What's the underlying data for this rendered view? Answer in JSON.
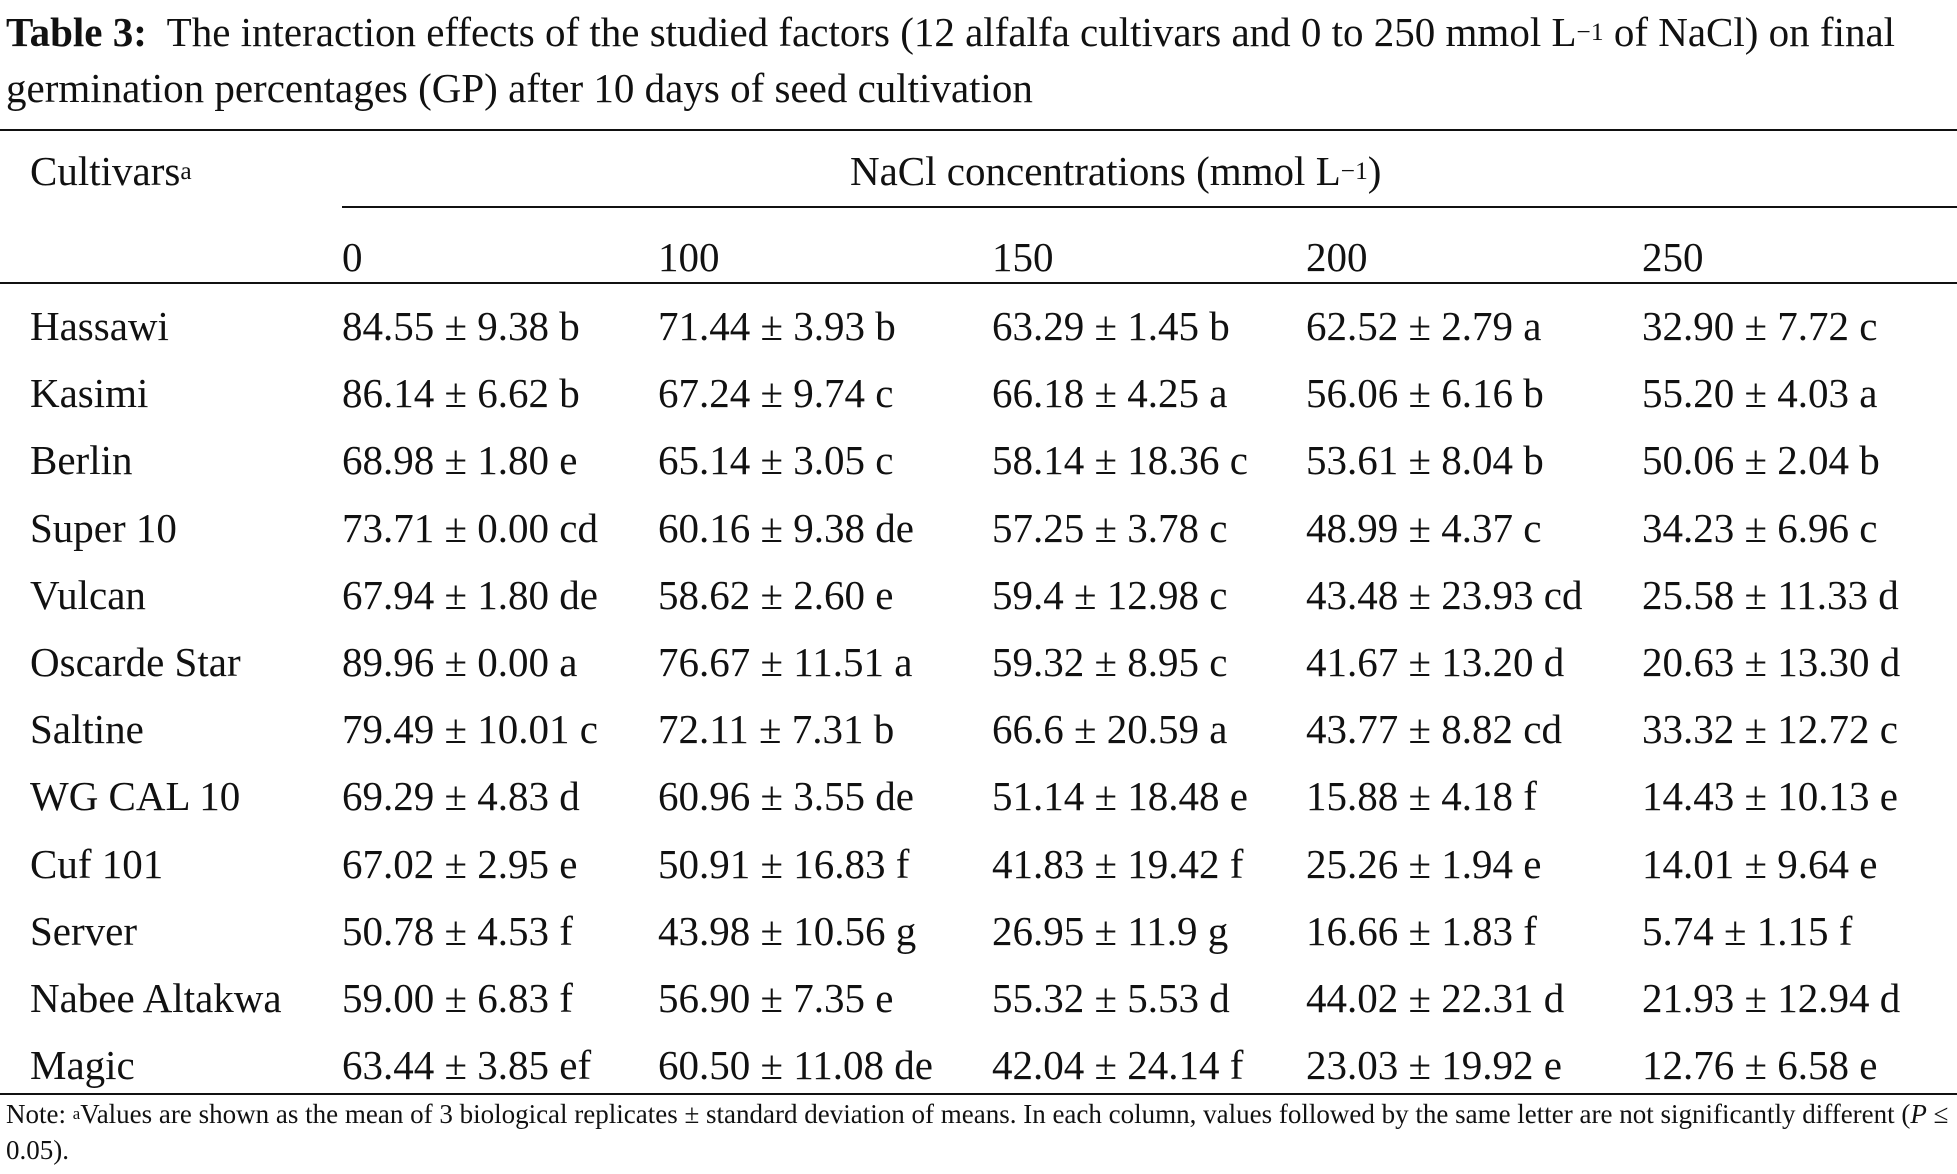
{
  "caption": {
    "label": "Table 3:",
    "text_before_sup": "The interaction effects of the studied factors (12 alfalfa cultivars and 0 to 250 mmol L",
    "sup": "−1",
    "text_after_sup": "of NaCl) on final germination percentages (GP) after 10 days of seed cultivation"
  },
  "header": {
    "cultivars_label": "Cultivars",
    "cultivars_sup": "a",
    "concentration_label": "NaCl concentrations (mmol L",
    "concentration_sup": "−1",
    "concentration_close": ")",
    "concentrations": [
      "0",
      "100",
      "150",
      "200",
      "250"
    ]
  },
  "rows": [
    {
      "cultivar": "Hassawi",
      "values": [
        "84.55 ± 9.38 b",
        "71.44 ± 3.93 b",
        "63.29 ± 1.45 b",
        "62.52 ± 2.79 a",
        "32.90 ± 7.72 c"
      ]
    },
    {
      "cultivar": "Kasimi",
      "values": [
        "86.14 ± 6.62 b",
        "67.24 ± 9.74 c",
        "66.18 ± 4.25 a",
        "56.06 ± 6.16 b",
        "55.20 ± 4.03 a"
      ]
    },
    {
      "cultivar": "Berlin",
      "values": [
        "68.98 ± 1.80 e",
        "65.14 ± 3.05 c",
        "58.14 ± 18.36 c",
        "53.61 ± 8.04 b",
        "50.06 ± 2.04 b"
      ]
    },
    {
      "cultivar": "Super 10",
      "values": [
        "73.71 ± 0.00 cd",
        "60.16 ± 9.38 de",
        "57.25 ± 3.78 c",
        "48.99 ± 4.37 c",
        "34.23 ± 6.96 c"
      ]
    },
    {
      "cultivar": "Vulcan",
      "values": [
        "67.94 ± 1.80 de",
        "58.62 ± 2.60 e",
        "59.4 ± 12.98 c",
        "43.48 ± 23.93 cd",
        "25.58 ± 11.33 d"
      ]
    },
    {
      "cultivar": "Oscarde Star",
      "values": [
        "89.96 ± 0.00 a",
        "76.67 ± 11.51 a",
        "59.32 ± 8.95 c",
        "41.67 ± 13.20 d",
        "20.63 ± 13.30 d"
      ]
    },
    {
      "cultivar": "Saltine",
      "values": [
        "79.49 ± 10.01 c",
        "72.11 ± 7.31 b",
        "66.6 ± 20.59 a",
        "43.77 ± 8.82 cd",
        "33.32 ± 12.72 c"
      ]
    },
    {
      "cultivar": "WG CAL 10",
      "values": [
        "69.29 ± 4.83 d",
        "60.96 ± 3.55 de",
        "51.14 ± 18.48 e",
        "15.88 ± 4.18 f",
        "14.43 ± 10.13 e"
      ]
    },
    {
      "cultivar": "Cuf 101",
      "values": [
        "67.02 ± 2.95 e",
        "50.91 ± 16.83 f",
        "41.83 ± 19.42 f",
        "25.26 ± 1.94 e",
        "14.01 ± 9.64 e"
      ]
    },
    {
      "cultivar": "Server",
      "values": [
        "50.78 ± 4.53 f",
        "43.98 ± 10.56 g",
        "26.95 ± 11.9 g",
        "16.66 ± 1.83 f",
        "5.74 ± 1.15 f"
      ]
    },
    {
      "cultivar": "Nabee Altakwa",
      "values": [
        "59.00 ± 6.83 f",
        "56.90 ± 7.35 e",
        "55.32 ± 5.53 d",
        "44.02 ± 22.31 d",
        "21.93 ± 12.94 d"
      ]
    },
    {
      "cultivar": "Magic",
      "values": [
        "63.44 ± 3.85 ef",
        "60.50 ± 11.08 de",
        "42.04 ± 24.14 f",
        "23.03 ± 19.92 e",
        "12.76 ± 6.58 e"
      ]
    }
  ],
  "note": {
    "prefix": "Note: ",
    "sup": "a",
    "text": "Values are shown as the mean of 3 biological replicates ± standard deviation of means. In each column, values followed by the same letter are not significantly different (",
    "p_symbol": "P",
    "p_text": " ≤ 0.05)."
  }
}
